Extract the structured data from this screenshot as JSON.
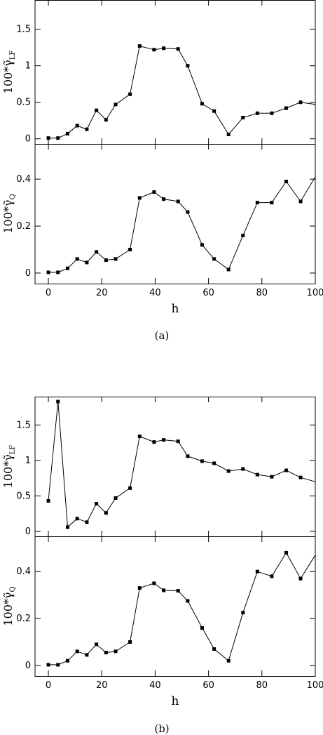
{
  "figure": {
    "captions": [
      "(a)",
      "(b)"
    ]
  },
  "chart_data": [
    {
      "type": "line",
      "panel": "(a) top",
      "ylabel": "100*γ̃_LF",
      "xlabel": "",
      "xlim": [
        -5,
        100
      ],
      "ylim": [
        -0.07,
        1.9
      ],
      "yticks": [
        0,
        0.5,
        1,
        1.5
      ],
      "ytick_labels": [
        "0",
        "0.5",
        "1",
        "1.5"
      ],
      "xticks": [
        0,
        20,
        40,
        60,
        80,
        100
      ],
      "xtick_labels": [],
      "x": [
        0,
        3.6,
        7.2,
        10.8,
        14.4,
        18,
        21.6,
        25.2,
        30.6,
        34.2,
        39.6,
        43.2,
        48.6,
        52.2,
        57.6,
        62.1,
        67.5,
        72.9,
        78.3,
        83.7,
        89.1,
        94.5,
        100
      ],
      "series": [
        {
          "values": [
            0.01,
            0.01,
            0.07,
            0.18,
            0.13,
            0.39,
            0.26,
            0.47,
            0.61,
            1.27,
            1.22,
            1.24,
            1.23,
            1.0,
            0.48,
            0.38,
            0.06,
            0.29,
            0.35,
            0.35,
            0.42,
            0.5,
            0.47
          ]
        }
      ]
    },
    {
      "type": "line",
      "panel": "(a) bottom",
      "ylabel": "100*γ̃_Q",
      "xlabel": "h",
      "xlim": [
        -5,
        100
      ],
      "ylim": [
        -0.045,
        0.55
      ],
      "yticks": [
        0,
        0.2,
        0.4
      ],
      "ytick_labels": [
        "0",
        "0.2",
        "0.4"
      ],
      "xticks": [
        0,
        20,
        40,
        60,
        80,
        100
      ],
      "xtick_labels": [
        "0",
        "20",
        "40",
        "60",
        "80",
        "100"
      ],
      "x": [
        0,
        3.6,
        7.2,
        10.8,
        14.4,
        18,
        21.6,
        25.2,
        30.6,
        34.2,
        39.6,
        43.2,
        48.6,
        52.2,
        57.6,
        62.1,
        67.5,
        72.9,
        78.3,
        83.7,
        89.1,
        94.5,
        100
      ],
      "series": [
        {
          "values": [
            0.003,
            0.003,
            0.02,
            0.06,
            0.045,
            0.09,
            0.055,
            0.06,
            0.1,
            0.32,
            0.345,
            0.315,
            0.305,
            0.26,
            0.12,
            0.06,
            0.015,
            0.16,
            0.3,
            0.3,
            0.39,
            0.305,
            0.41
          ]
        }
      ]
    },
    {
      "type": "line",
      "panel": "(b) top",
      "ylabel": "100*γ̃_LF",
      "xlabel": "",
      "xlim": [
        -5,
        100
      ],
      "ylim": [
        -0.07,
        1.9
      ],
      "yticks": [
        0,
        0.5,
        1,
        1.5
      ],
      "ytick_labels": [
        "0",
        "0.5",
        "1",
        "1.5"
      ],
      "xticks": [
        0,
        20,
        40,
        60,
        80,
        100
      ],
      "xtick_labels": [],
      "x": [
        0,
        3.6,
        7.2,
        10.8,
        14.4,
        18,
        21.6,
        25.2,
        30.6,
        34.2,
        39.6,
        43.2,
        48.6,
        52.2,
        57.6,
        62.1,
        67.5,
        72.9,
        78.3,
        83.7,
        89.1,
        94.5,
        100
      ],
      "series": [
        {
          "values": [
            0.43,
            1.83,
            0.06,
            0.18,
            0.13,
            0.39,
            0.26,
            0.47,
            0.61,
            1.34,
            1.26,
            1.29,
            1.27,
            1.06,
            0.99,
            0.96,
            0.85,
            0.88,
            0.8,
            0.77,
            0.86,
            0.76,
            0.7
          ]
        }
      ]
    },
    {
      "type": "line",
      "panel": "(b) bottom",
      "ylabel": "100*γ̃_Q",
      "xlabel": "h",
      "xlim": [
        -5,
        100
      ],
      "ylim": [
        -0.045,
        0.55
      ],
      "yticks": [
        0,
        0.2,
        0.4
      ],
      "ytick_labels": [
        "0",
        "0.2",
        "0.4"
      ],
      "xticks": [
        0,
        20,
        40,
        60,
        80,
        100
      ],
      "xtick_labels": [
        "0",
        "20",
        "40",
        "60",
        "80",
        "100"
      ],
      "x": [
        0,
        3.6,
        7.2,
        10.8,
        14.4,
        18,
        21.6,
        25.2,
        30.6,
        34.2,
        39.6,
        43.2,
        48.6,
        52.2,
        57.6,
        62.1,
        67.5,
        72.9,
        78.3,
        83.7,
        89.1,
        94.5,
        100
      ],
      "series": [
        {
          "values": [
            0.003,
            0.003,
            0.02,
            0.06,
            0.045,
            0.09,
            0.055,
            0.06,
            0.1,
            0.33,
            0.35,
            0.32,
            0.318,
            0.275,
            0.16,
            0.07,
            0.02,
            0.225,
            0.4,
            0.38,
            0.48,
            0.37,
            0.47
          ]
        }
      ]
    }
  ]
}
